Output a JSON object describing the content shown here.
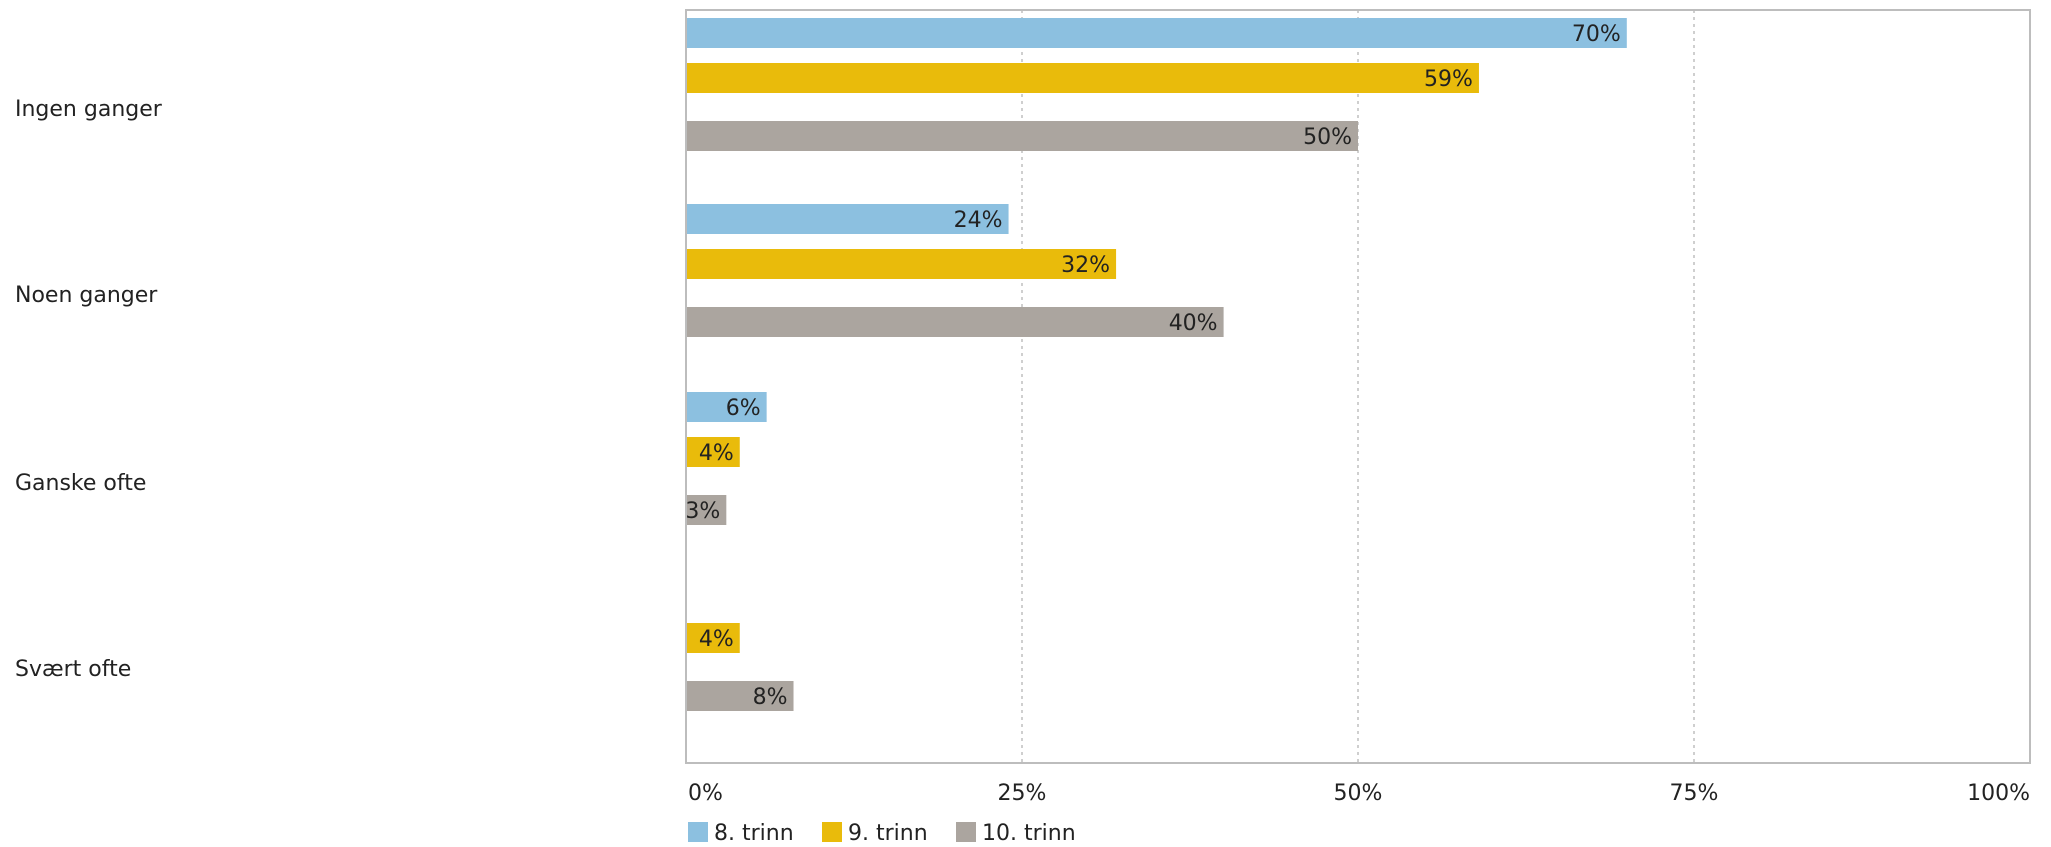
{
  "chart_data": {
    "type": "bar",
    "orientation": "horizontal",
    "categories": [
      "Ingen ganger",
      "Noen ganger",
      "Ganske ofte",
      "Svært ofte"
    ],
    "series": [
      {
        "name": "8. trinn",
        "color": "#8cc0e0",
        "values": [
          70,
          24,
          6,
          0
        ],
        "labels": [
          "70%",
          "24%",
          "6%",
          ""
        ]
      },
      {
        "name": "9. trinn",
        "color": "#e9bb0b",
        "values": [
          59,
          32,
          4,
          4
        ],
        "labels": [
          "59%",
          "32%",
          "4%",
          "4%"
        ]
      },
      {
        "name": "10. trinn",
        "color": "#aba59f",
        "values": [
          50,
          40,
          3,
          8
        ],
        "labels": [
          "50%",
          "40%",
          "3%",
          "8%"
        ]
      }
    ],
    "xlim": [
      0,
      100
    ],
    "xticks": [
      0,
      25,
      50,
      75,
      100
    ],
    "xtick_labels": [
      "0%",
      "25%",
      "50%",
      "75%",
      "100%"
    ],
    "grid": true,
    "legend": "bottom-left"
  }
}
